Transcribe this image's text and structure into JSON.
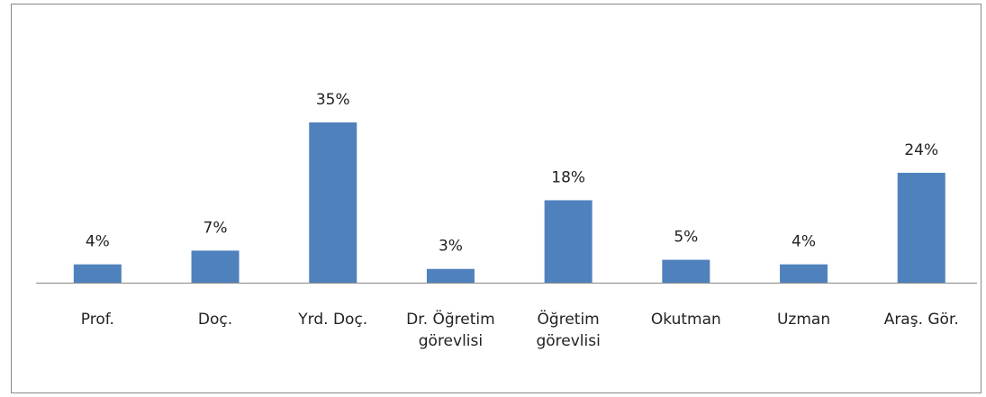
{
  "chart_data": {
    "type": "bar",
    "categories": [
      "Prof.",
      "Doç.",
      "Yrd. Doç.",
      "Dr. Öğretim görevlisi",
      "Öğretim görevlisi",
      "Okutman",
      "Uzman",
      "Araş. Gör."
    ],
    "values": [
      4,
      7,
      35,
      3,
      18,
      5,
      4,
      24
    ],
    "value_labels": [
      "4%",
      "7%",
      "35%",
      "3%",
      "18%",
      "5%",
      "4%",
      "24%"
    ],
    "color": "#4f81bd"
  }
}
